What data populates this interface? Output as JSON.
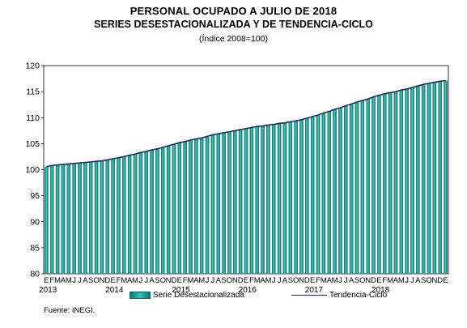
{
  "chart_data": {
    "type": "bar",
    "title": "PERSONAL OCUPADO A JULIO DE 2018",
    "subtitle": "SERIES DESESTACIONALIZADA Y DE TENDENCIA-CICLO",
    "subtitle2": "(Índice 2008=100)",
    "ylim": [
      80,
      120
    ],
    "yticks": [
      80,
      85,
      90,
      95,
      100,
      105,
      110,
      115,
      120
    ],
    "month_letters": [
      "E",
      "F",
      "M",
      "A",
      "M",
      "J",
      "J",
      "A",
      "S",
      "O",
      "N",
      "D"
    ],
    "years": [
      "2013",
      "2014",
      "2015",
      "2016",
      "2017",
      "2018"
    ],
    "series": [
      {
        "name": "Serie Desestacionalizada",
        "type": "bar",
        "color": "#1aa39b",
        "values": [
          100.5,
          100.7,
          100.9,
          101.0,
          101.1,
          101.2,
          101.3,
          101.4,
          101.5,
          101.6,
          101.7,
          101.8,
          102.0,
          102.2,
          102.4,
          102.7,
          103.0,
          103.2,
          103.5,
          103.8,
          104.0,
          104.2,
          104.5,
          104.8,
          105.1,
          105.4,
          105.6,
          105.8,
          106.0,
          106.3,
          106.6,
          106.9,
          107.1,
          107.3,
          107.5,
          107.7,
          107.9,
          108.1,
          108.2,
          108.4,
          108.5,
          108.6,
          108.8,
          109.0,
          109.1,
          109.3,
          109.5,
          109.8,
          110.1,
          110.4,
          110.8,
          111.2,
          111.6,
          111.8,
          112.2,
          112.6,
          113.0,
          113.3,
          113.6,
          113.9,
          114.3,
          114.6,
          114.8,
          115.0,
          115.2,
          115.5,
          115.8,
          116.1,
          116.4,
          116.6,
          116.8,
          117.0,
          117.1
        ]
      },
      {
        "name": "Tendencia-Ciclo",
        "type": "line",
        "color": "#1e2b58",
        "values": [
          100.6,
          100.8,
          100.9,
          101.0,
          101.1,
          101.2,
          101.3,
          101.4,
          101.5,
          101.6,
          101.7,
          101.9,
          102.1,
          102.3,
          102.5,
          102.8,
          103.0,
          103.3,
          103.5,
          103.8,
          104.0,
          104.3,
          104.6,
          104.9,
          105.2,
          105.4,
          105.7,
          105.9,
          106.1,
          106.4,
          106.7,
          106.9,
          107.1,
          107.3,
          107.5,
          107.7,
          107.9,
          108.1,
          108.3,
          108.4,
          108.6,
          108.7,
          108.9,
          109.0,
          109.2,
          109.4,
          109.6,
          109.9,
          110.2,
          110.5,
          110.9,
          111.2,
          111.6,
          111.9,
          112.3,
          112.6,
          113.0,
          113.3,
          113.6,
          114.0,
          114.3,
          114.6,
          114.8,
          115.0,
          115.3,
          115.5,
          115.8,
          116.1,
          116.4,
          116.6,
          116.8,
          117.0,
          117.1
        ]
      }
    ],
    "legend": {
      "placement": "bottom"
    },
    "source": "Fuente: INEGI."
  }
}
